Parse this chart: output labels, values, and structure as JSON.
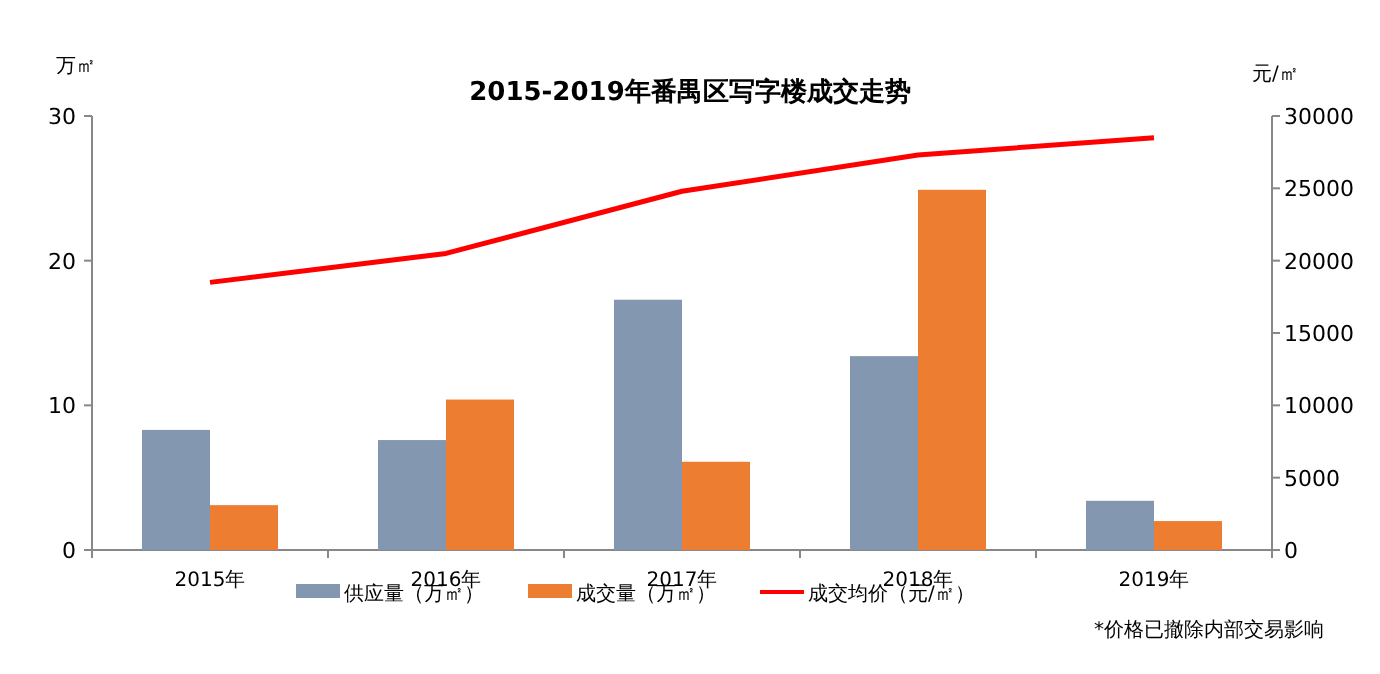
{
  "chart_data": {
    "type": "bar",
    "title": "2015-2019年番禺区写字楼成交走势",
    "ylabel": "万㎡",
    "y2label": "元/㎡",
    "categories": [
      "2015年",
      "2016年",
      "2017年",
      "2018年",
      "2019年"
    ],
    "series": [
      {
        "name": "供应量（万㎡）",
        "color": "#8497b0",
        "values": [
          8.3,
          7.6,
          17.3,
          13.4,
          3.4
        ]
      },
      {
        "name": "成交量（万㎡）",
        "color": "#ed7d31",
        "values": [
          3.1,
          10.4,
          6.1,
          24.9,
          2.0
        ]
      },
      {
        "name": "成交均价（元/㎡）",
        "type": "line",
        "axis": "y2",
        "color": "#ff0000",
        "values": [
          18500,
          20500,
          24800,
          27300,
          28500
        ]
      }
    ],
    "ylim": [
      0,
      30
    ],
    "yticks": [
      0,
      10,
      20,
      30
    ],
    "y2lim": [
      0,
      30000
    ],
    "y2ticks": [
      0,
      5000,
      10000,
      15000,
      20000,
      25000,
      30000
    ],
    "legend": "bottom",
    "annotations": [
      "*价格已撤除内部交易影响"
    ]
  }
}
